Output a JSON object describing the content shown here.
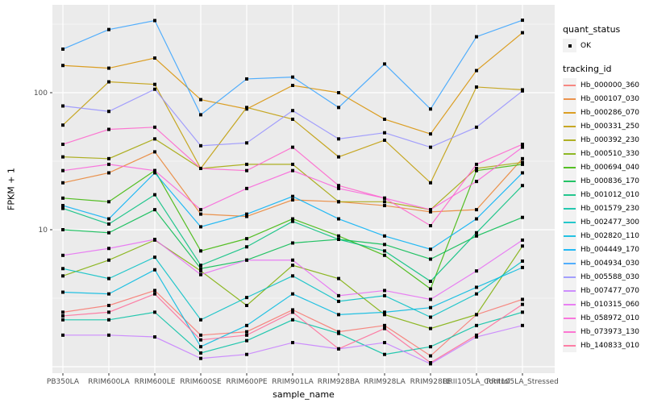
{
  "axes": {
    "y_title": "FPKM + 1",
    "x_title": "sample_name",
    "y_tick_labels": [
      "100",
      "10"
    ],
    "tick_color": "#333333",
    "tick_label_color": "#4D4D4D",
    "panel_bg": "#EBEBEB",
    "grid_color": "#FFFFFF"
  },
  "legend": {
    "quant_status_title": "quant_status",
    "quant_status_items": [
      "OK"
    ],
    "tracking_id_title": "tracking_id"
  },
  "chart_data": {
    "type": "line",
    "title": "",
    "xlabel": "sample_name",
    "ylabel": "FPKM + 1",
    "yscale": "log10",
    "ylim": [
      0.9,
      430
    ],
    "yticks": [
      100,
      10
    ],
    "grid": "on",
    "legend_position": "right",
    "marker": "black-square",
    "categories": [
      "PB350LA",
      "RRIM600LA",
      "RRIM600LE",
      "RRIM600SE",
      "RRIM600PE",
      "RRIM901LA",
      "RRIM928BA",
      "RRIM928LA",
      "RRIM928LE",
      "RRII105LA_Control",
      "RRII105LA_Stressed"
    ],
    "series": [
      {
        "name": "Hb_000000_360",
        "color": "#F8766D",
        "values": [
          2.5,
          2.8,
          3.6,
          1.7,
          1.8,
          2.6,
          1.8,
          2.0,
          1.2,
          2.4,
          3.1
        ]
      },
      {
        "name": "Hb_000107_030",
        "color": "#EA8331",
        "values": [
          22,
          26,
          37,
          13,
          12.5,
          16.5,
          16,
          15,
          13.5,
          14,
          33
        ]
      },
      {
        "name": "Hb_000286_070",
        "color": "#D89000",
        "values": [
          158,
          151,
          179,
          89,
          76,
          113,
          100,
          64,
          50,
          145,
          274
        ]
      },
      {
        "name": "Hb_000331_250",
        "color": "#C09B00",
        "values": [
          58,
          120,
          115,
          28,
          78,
          64,
          34,
          45,
          22,
          110,
          105
        ]
      },
      {
        "name": "Hb_000392_230",
        "color": "#A3A500",
        "values": [
          34,
          33,
          46,
          28,
          30,
          30,
          16,
          16,
          14,
          28,
          31
        ]
      },
      {
        "name": "Hb_000510_330",
        "color": "#7CAE00",
        "values": [
          4.6,
          6.0,
          8.4,
          5.0,
          2.8,
          5.5,
          4.4,
          2.4,
          1.9,
          2.4,
          7.6
        ]
      },
      {
        "name": "Hb_000694_040",
        "color": "#39B600",
        "values": [
          17,
          16,
          27,
          7.0,
          8.6,
          12,
          9.0,
          6.5,
          3.7,
          27,
          30
        ]
      },
      {
        "name": "Hb_000836_170",
        "color": "#00BB4E",
        "values": [
          10,
          9.5,
          14,
          5.2,
          6.0,
          8.0,
          8.5,
          7.8,
          6.1,
          9.0,
          12.3
        ]
      },
      {
        "name": "Hb_001012_010",
        "color": "#00BF7D",
        "values": [
          14.3,
          11,
          18,
          5.5,
          7.5,
          11.5,
          8.5,
          7.0,
          4.2,
          9.5,
          21
        ]
      },
      {
        "name": "Hb_001579_230",
        "color": "#00C1A3",
        "values": [
          2.2,
          2.2,
          2.5,
          1.26,
          1.55,
          2.2,
          1.75,
          1.23,
          1.4,
          2.0,
          2.5
        ]
      },
      {
        "name": "Hb_002477_300",
        "color": "#00BFC4",
        "values": [
          5.2,
          4.4,
          6.3,
          2.2,
          3.2,
          4.6,
          3.0,
          3.3,
          2.3,
          3.4,
          5.9
        ]
      },
      {
        "name": "Hb_002820_110",
        "color": "#00BAE0",
        "values": [
          3.5,
          3.4,
          5.1,
          1.4,
          2.0,
          3.4,
          2.4,
          2.5,
          2.7,
          3.8,
          5.3
        ]
      },
      {
        "name": "Hb_004449_170",
        "color": "#00B0F6",
        "values": [
          15,
          12,
          26,
          10.5,
          13,
          17.5,
          12,
          9.0,
          7.2,
          12,
          26
        ]
      },
      {
        "name": "Hb_004934_030",
        "color": "#35A2FF",
        "values": [
          208,
          289,
          336,
          69,
          126,
          130,
          78,
          162,
          76,
          256,
          338
        ]
      },
      {
        "name": "Hb_005588_030",
        "color": "#9590FF",
        "values": [
          80,
          73,
          106,
          41,
          43,
          74,
          46,
          51,
          40,
          56,
          103
        ]
      },
      {
        "name": "Hb_007477_070",
        "color": "#C77CFF",
        "values": [
          1.7,
          1.7,
          1.65,
          1.15,
          1.23,
          1.5,
          1.35,
          1.5,
          1.05,
          1.65,
          2.0
        ]
      },
      {
        "name": "Hb_010315_060",
        "color": "#E76BF3",
        "values": [
          6.5,
          7.3,
          8.5,
          4.7,
          6.0,
          6.0,
          3.3,
          3.6,
          3.1,
          5.0,
          8.4
        ]
      },
      {
        "name": "Hb_058972_010",
        "color": "#FA62DB",
        "values": [
          27,
          30,
          27,
          14,
          20,
          27,
          20,
          17,
          14,
          22.5,
          40
        ]
      },
      {
        "name": "Hb_073973_130",
        "color": "#FF61CC",
        "values": [
          42,
          54,
          56,
          28,
          27,
          40,
          21,
          17,
          10.7,
          30,
          42
        ]
      },
      {
        "name": "Hb_140833_010",
        "color": "#FF6A98",
        "values": [
          2.35,
          2.5,
          3.4,
          1.57,
          1.7,
          2.5,
          1.35,
          1.9,
          1.07,
          1.7,
          2.85
        ]
      }
    ]
  }
}
